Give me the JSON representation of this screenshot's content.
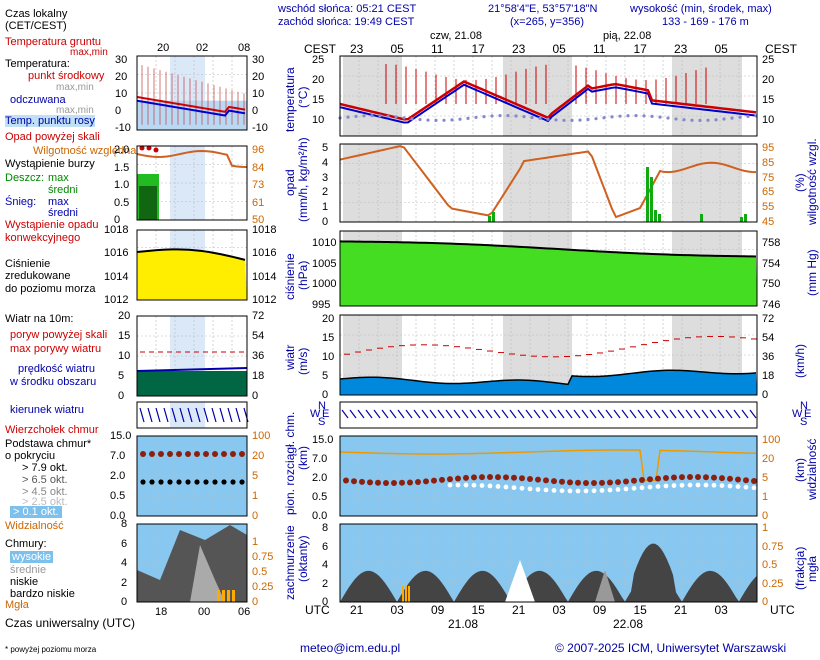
{
  "header": {
    "sunrise": "wschód słońca: 05:21 CEST",
    "sunset": "zachód słońca: 19:49 CEST",
    "coords": "21°58'4\"E, 53°57'18\"N",
    "grid": "(x=265, y=356)",
    "elevation_title": "wysokość (min, środek, max)",
    "elevation_values": "133 - 169 - 176 m",
    "day1": "czw, 21.08",
    "day2": "pią, 22.08"
  },
  "left": {
    "local_time": "Czas lokalny",
    "local_time_zone": "(CET/CEST)",
    "local_ticks": [
      "20",
      "02",
      "08"
    ],
    "ground_temp": "Temperatura gruntu",
    "ground_temp_sub": "max,min",
    "temperature": "Temperatura:",
    "mid_point": "punkt środkowy",
    "max_min": "max,min",
    "felt": "odczuwana",
    "felt_sub": "max,min",
    "dew": "Temp. punktu rosy",
    "rain_above": "Opad powyżej skali",
    "humidity": "Wilgotność względna",
    "storm": "Wystąpienie burzy",
    "rain": "Deszcz:",
    "max": "max",
    "mean": "średni",
    "snow": "Śnieg:",
    "conv_rain1": "Wystąpienie opadu",
    "conv_rain2": "konwekcyjnego",
    "pressure1": "Ciśnienie",
    "pressure2": "zredukowane",
    "pressure3": "do poziomu morza",
    "wind10": "Wiatr na 10m:",
    "gust_above": "poryw powyżej skali",
    "max_gust": "max porywy wiatru",
    "wind_speed1": "prędkość wiatru",
    "wind_speed2": "w środku obszaru",
    "wind_dir": "kierunek wiatru",
    "cloud_top": "Wierzchołek chmur",
    "cloud_base1": "Podstawa chmur*",
    "cloud_base2": "o pokryciu",
    "okta": [
      "> 7.9 okt.",
      "> 6.5 okt.",
      "> 4.5 okt.",
      "> 2.5 okt.",
      "> 0.1 okt."
    ],
    "visibility": "Widzialność",
    "clouds": "Chmury:",
    "high": "wysokie",
    "medium": "średnie",
    "low": "niskie",
    "very_low": "bardzo niskie",
    "fog": "Mgła",
    "utc": "Czas uniwersalny (UTC)",
    "utc_ticks": [
      "18",
      "00",
      "06"
    ],
    "footnote": "* powyżej poziomu morza",
    "temp_axis": [
      "30",
      "20",
      "10",
      "0",
      "-10"
    ],
    "rain_axis": [
      "2.0",
      "1.5",
      "1.0",
      "0.5",
      "0"
    ],
    "hum_axis": [
      "96",
      "84",
      "73",
      "61",
      "50"
    ],
    "press_axis": [
      "1018",
      "1016",
      "1014",
      "1012"
    ],
    "wind_axis_ms": [
      "20",
      "15",
      "10",
      "5",
      "0"
    ],
    "wind_axis_kmh": [
      "72",
      "54",
      "36",
      "18",
      "0"
    ],
    "cloud_axis": [
      "15.0",
      "7.0",
      "2.0",
      "0.5",
      "0.0"
    ],
    "vis_axis": [
      "100",
      "20",
      "5",
      "1",
      "0"
    ],
    "okt_axis": [
      "8",
      "6",
      "4",
      "2",
      "0"
    ],
    "fog_axis": [
      "1",
      "0.75",
      "0.5",
      "0.25",
      "0"
    ]
  },
  "main": {
    "cest": "CEST",
    "cest_ticks": [
      "23",
      "05",
      "11",
      "17",
      "23",
      "05",
      "11",
      "17",
      "23",
      "05"
    ],
    "utc_ticks": [
      "21",
      "03",
      "09",
      "15",
      "21",
      "03",
      "09",
      "15",
      "21",
      "03"
    ],
    "utc": "UTC",
    "date1": "21.08",
    "date2": "22.08",
    "temp_label1": "temperatura",
    "temp_label2": "(°C)",
    "temp_axis": [
      "25",
      "20",
      "15",
      "10"
    ],
    "rain_label1": "opad",
    "rain_label2": "(mm/h, kg/m²/h)",
    "rain_axis": [
      "5",
      "4",
      "3",
      "2",
      "1",
      "0"
    ],
    "hum_label1": "wilgotność wzgl.",
    "hum_label2": "(%)",
    "hum_axis": [
      "95",
      "85",
      "75",
      "65",
      "55",
      "45"
    ],
    "press_label1": "ciśnienie",
    "press_label2": "(hPa)",
    "press_axis": [
      "1010",
      "1005",
      "1000",
      "995"
    ],
    "press_axis_mmhg": [
      "758",
      "754",
      "750",
      "746"
    ],
    "press_unit_mmhg": "(mm Hg)",
    "wind_label1": "wiatr",
    "wind_label2": "(m/s)",
    "wind_axis": [
      "20",
      "15",
      "10",
      "5",
      "0"
    ],
    "wind_axis_kmh": [
      "72",
      "54",
      "36",
      "18",
      "0"
    ],
    "wind_unit_kmh": "(km/h)",
    "compass": [
      "N",
      "W",
      "E",
      "S"
    ],
    "cloud_label1": "pion. rozciągł. chm.",
    "cloud_label2": "(km)",
    "cloud_axis": [
      "15.0",
      "7.0",
      "2.0",
      "0.5",
      "0.0"
    ],
    "vis_label1": "widzialność",
    "vis_label2": "(km)",
    "vis_axis": [
      "100",
      "20",
      "5",
      "1",
      "0"
    ],
    "cc_label1": "zachmurzenie",
    "cc_label2": "(oktanty)",
    "cc_axis": [
      "8",
      "6",
      "4",
      "2",
      "0"
    ],
    "fog_label1": "mgła",
    "fog_label2": "(frakcja)",
    "fog_axis": [
      "1",
      "0.75",
      "0.5",
      "0.25",
      "0"
    ]
  },
  "footer": {
    "email": "meteo@icm.edu.pl",
    "copyright": "© 2007-2025 ICM, Uniwersytet Warszawski"
  },
  "chart_data": {
    "type": "line",
    "x": [
      "21.08 21",
      "22.08 03",
      "22.08 09",
      "22.08 15",
      "22.08 21",
      "23.08 03"
    ],
    "temperature_mid": [
      13,
      11,
      18,
      24,
      16,
      13
    ],
    "dew_point": [
      11,
      10,
      10,
      11,
      11,
      10
    ],
    "humidity": [
      88,
      95,
      60,
      50,
      85,
      90
    ],
    "pressure_hpa": [
      1010,
      1009,
      1008,
      1008,
      1007,
      1007
    ],
    "wind_speed_ms": [
      4,
      3,
      3,
      4,
      5,
      6
    ],
    "max_gust_ms": [
      11,
      9,
      10,
      13,
      13,
      14
    ]
  },
  "colors": {
    "temp": "#cc0000",
    "felt": "#0000cc",
    "dew": "#8888cc",
    "humidity": "#d06020",
    "pressure": "#22cc00",
    "wind": "#1166cc",
    "cloud_bg": "#88c8f0",
    "night": "#dddddd",
    "grid": "#bbbbbb"
  }
}
